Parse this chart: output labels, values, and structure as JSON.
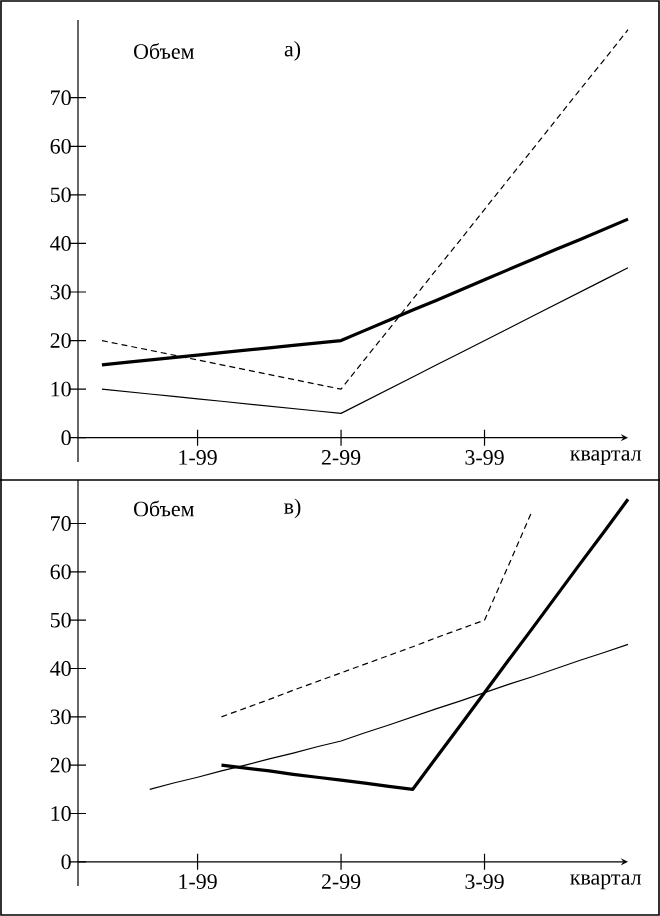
{
  "chart_data": [
    {
      "type": "line",
      "title": "а)",
      "ylabel": "Объем",
      "xlabel": "квартал",
      "ylim": [
        -5,
        86
      ],
      "categories": [
        null,
        null,
        null,
        null,
        null,
        "1-99",
        null,
        null,
        null,
        null,
        null,
        "2-99",
        null,
        null,
        null,
        null,
        null,
        "3-99",
        null,
        null,
        null,
        null,
        null,
        null
      ],
      "yticks": [
        0,
        10,
        20,
        30,
        40,
        50,
        60,
        70
      ],
      "grid": false,
      "series": [
        {
          "color": "#000000",
          "line_style": "solid",
          "values": [
            null,
            15,
            15.5,
            16,
            16.5,
            17,
            17.5,
            18,
            18.5,
            19,
            19.5,
            20,
            22.1,
            24.2,
            26.3,
            28.3,
            30.4,
            32.5,
            34.6,
            36.7,
            38.8,
            40.8,
            42.9,
            45
          ]
        },
        {
          "color": "#000000",
          "line_style": "solid",
          "values": [
            null,
            10,
            9.5,
            9,
            8.5,
            8,
            7.5,
            7,
            6.5,
            6,
            5.5,
            5,
            7.5,
            10,
            12.5,
            15,
            17.5,
            20,
            22.5,
            25,
            27.5,
            30,
            32.5,
            35
          ]
        },
        {
          "color": "#000000",
          "line_style": "dashed",
          "values": [
            null,
            20,
            19,
            18,
            17,
            16,
            15,
            14,
            13,
            12,
            11,
            10,
            16.2,
            22.3,
            28.5,
            34.7,
            40.8,
            47,
            53.2,
            59.3,
            65.5,
            71.7,
            77.8,
            84
          ]
        }
      ]
    },
    {
      "type": "line",
      "title": "в)",
      "ylabel": "Объем",
      "xlabel": "квартал",
      "ylim": [
        -5,
        79
      ],
      "categories": [
        null,
        null,
        null,
        null,
        null,
        "1-99",
        null,
        null,
        null,
        null,
        null,
        "2-99",
        null,
        null,
        null,
        null,
        null,
        "3-99",
        null,
        null,
        null,
        null,
        null,
        null
      ],
      "yticks": [
        0,
        10,
        20,
        30,
        40,
        50,
        60,
        70
      ],
      "grid": false,
      "series": [
        {
          "color": "#000000",
          "line_style": "solid",
          "values": [
            null,
            null,
            null,
            null,
            null,
            null,
            20,
            19.4,
            18.8,
            18.1,
            17.5,
            16.9,
            16.3,
            15.6,
            15,
            21.7,
            28.3,
            35,
            41.7,
            48.3,
            55,
            61.7,
            68.3,
            75
          ]
        },
        {
          "color": "#000000",
          "line_style": "solid",
          "values": [
            null,
            null,
            null,
            15,
            16.3,
            17.5,
            18.8,
            20,
            21.3,
            22.5,
            23.8,
            25,
            26.7,
            28.3,
            30,
            31.7,
            33.3,
            35,
            36.7,
            38.3,
            40,
            41.7,
            43.3,
            45
          ]
        },
        {
          "color": "#000000",
          "line_style": "dashed",
          "values": [
            null,
            null,
            null,
            null,
            null,
            null,
            30,
            31.8,
            33.6,
            35.5,
            37.3,
            39.1,
            40.9,
            42.7,
            44.5,
            46.4,
            48.2,
            50,
            61.3,
            72.7,
            null,
            null,
            null,
            null
          ]
        }
      ]
    }
  ]
}
